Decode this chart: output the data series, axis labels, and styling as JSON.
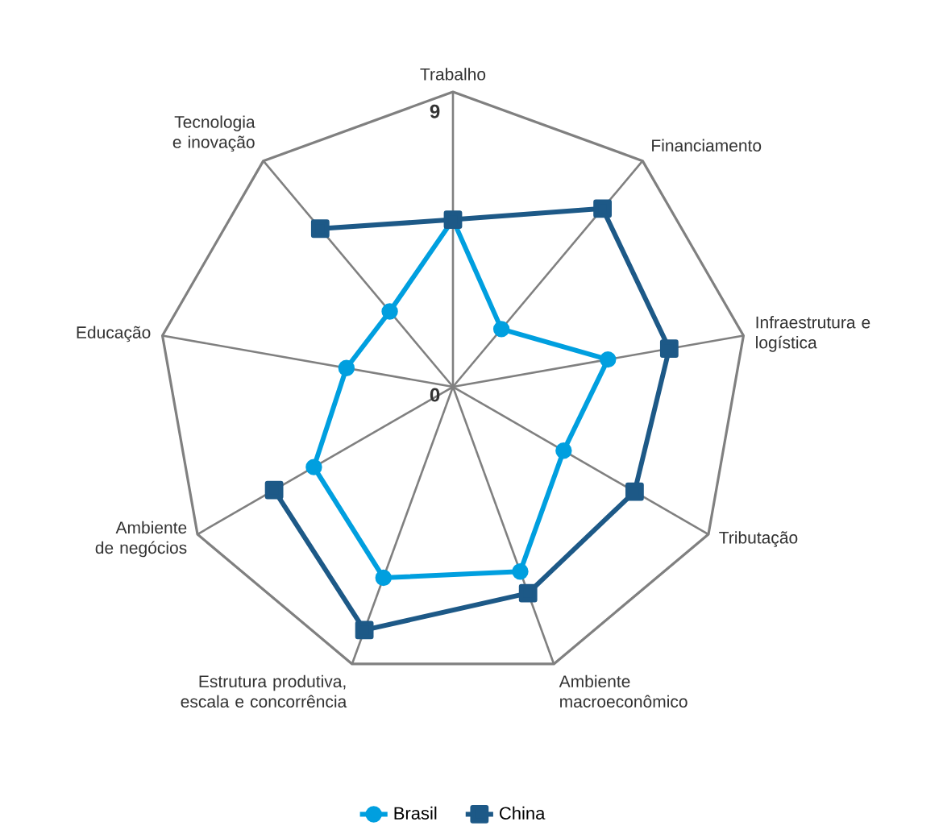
{
  "chart_data": {
    "type": "radar",
    "categories": [
      "Trabalho",
      "Financiamento",
      "Infraestrutura e logística",
      "Tributação",
      "Ambiente macroeconômico",
      "Estrutura produtiva, escala e concorrência",
      "Ambiente de negócios",
      "Educação",
      "Tecnologia e inovação"
    ],
    "series": [
      {
        "name": "Brasil",
        "color": "#009fdf",
        "marker": "circle",
        "values": [
          5.1,
          2.3,
          4.8,
          3.9,
          6.0,
          6.2,
          4.9,
          3.3,
          3.0
        ]
      },
      {
        "name": "China",
        "color": "#1d5987",
        "marker": "square",
        "values": [
          5.1,
          7.1,
          6.7,
          6.4,
          6.7,
          7.9,
          6.3,
          null,
          6.3
        ]
      }
    ],
    "ylim": [
      0,
      9
    ],
    "yticks": [
      0,
      9
    ],
    "grid": true,
    "legend": "bottom"
  }
}
